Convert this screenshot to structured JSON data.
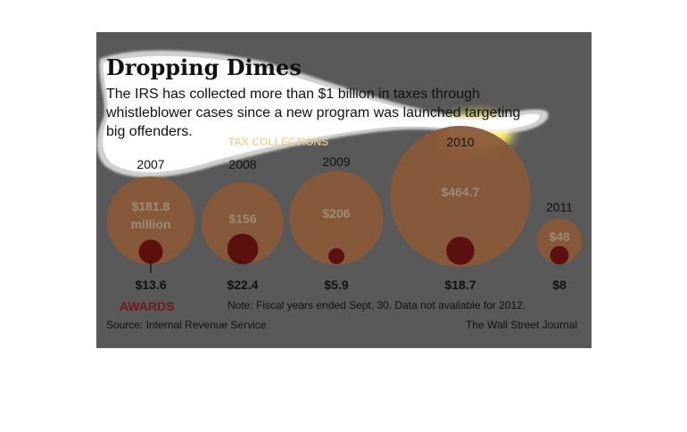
{
  "chart_data": {
    "type": "bubble",
    "title": "Dropping Dimes",
    "subtitle_lines": [
      "The IRS has collected more than $1 billion in taxes through",
      "whistleblower cases since a new program was launched targeting",
      "big offenders."
    ],
    "legend": {
      "collections_label": "TAX COLLECTIONS",
      "awards_label": "AWARDS"
    },
    "categories": [
      "2007",
      "2008",
      "2009",
      "2010",
      "2011"
    ],
    "series": [
      {
        "name": "TAX COLLECTIONS",
        "values": [
          181.8,
          156,
          206,
          464.7,
          48
        ],
        "labels": [
          "$181.8",
          "$156",
          "$206",
          "$464.7",
          "$48"
        ],
        "unit_label_first": "million"
      },
      {
        "name": "AWARDS",
        "values": [
          13.6,
          22.4,
          5.9,
          18.7,
          8
        ],
        "labels": [
          "$13.6",
          "$22.4",
          "$5.9",
          "$18.7",
          "$8"
        ]
      }
    ],
    "note": "Note: Fiscal years ended Sept. 30. Data not available for 2012.",
    "source": "Source: Internal Revenue Service",
    "credit": "The Wall Street Journal"
  },
  "colors": {
    "panel_background": "#595959",
    "collection_bubble": "#8a5a3a",
    "award_bubble": "#5c1010",
    "collection_text": "#9e8a78",
    "legend_collections_text": "#e6cf8f",
    "awards_text": "#6e1a1a",
    "highlight_cloud": "#ffffff",
    "highlight_glow": "#fff36a"
  }
}
